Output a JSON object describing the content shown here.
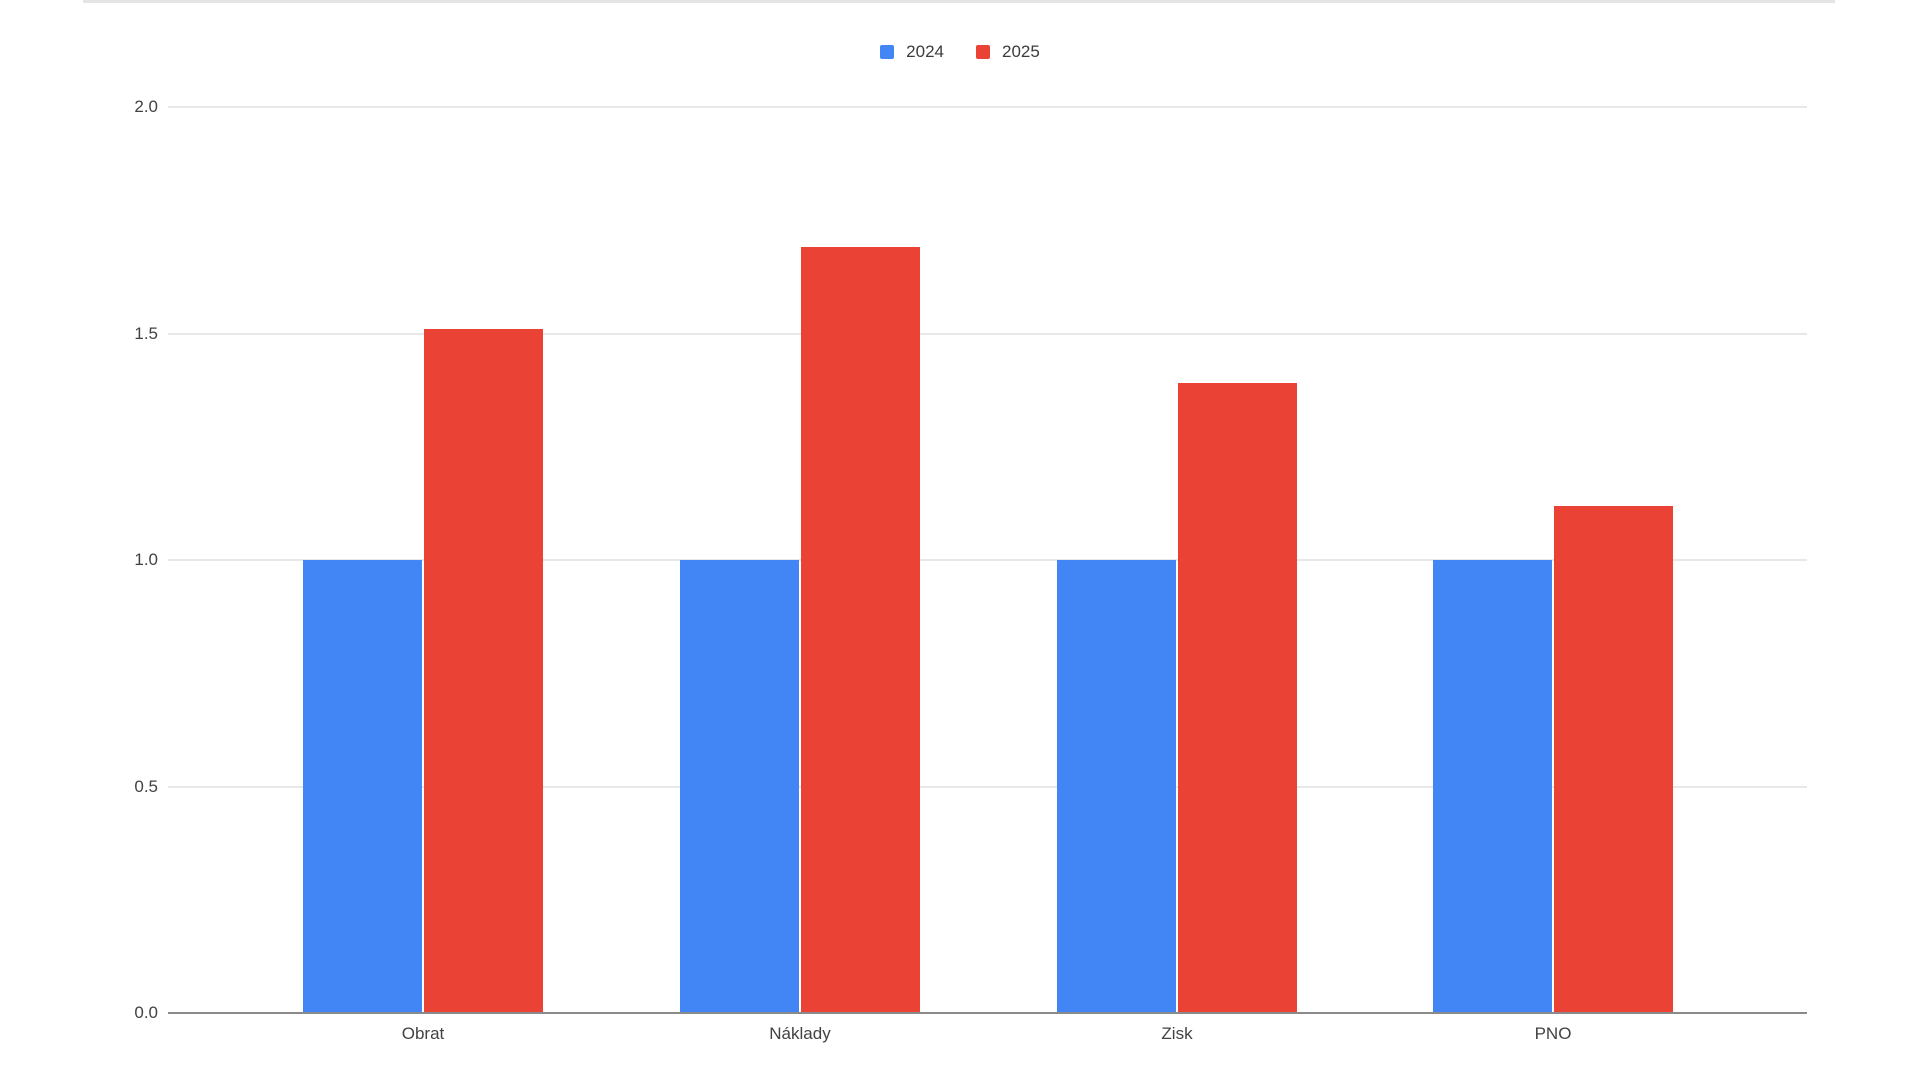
{
  "chart_data": {
    "type": "bar",
    "title": "",
    "xlabel": "",
    "ylabel": "",
    "categories": [
      "Obrat",
      "Náklady",
      "Zisk",
      "PNO"
    ],
    "series": [
      {
        "name": "2024",
        "color": "#4285F4",
        "values": [
          1.0,
          1.0,
          1.0,
          1.0
        ]
      },
      {
        "name": "2025",
        "color": "#EA4335",
        "values": [
          1.51,
          1.69,
          1.39,
          1.12
        ]
      }
    ],
    "ylim": [
      0,
      2
    ],
    "ytick_labels": [
      "0.0",
      "0.5",
      "1.0",
      "1.5",
      "2.0"
    ],
    "grid": "horizontal",
    "legend_position": "top-center",
    "colors": {
      "series_2024": "#4285F4",
      "series_2025": "#EA4335",
      "gridline": "#E8E8E8",
      "axis_line": "#8A8A8A",
      "label_text": "#424242",
      "top_border": "#E4E4E4",
      "background": "#FFFFFF"
    }
  }
}
